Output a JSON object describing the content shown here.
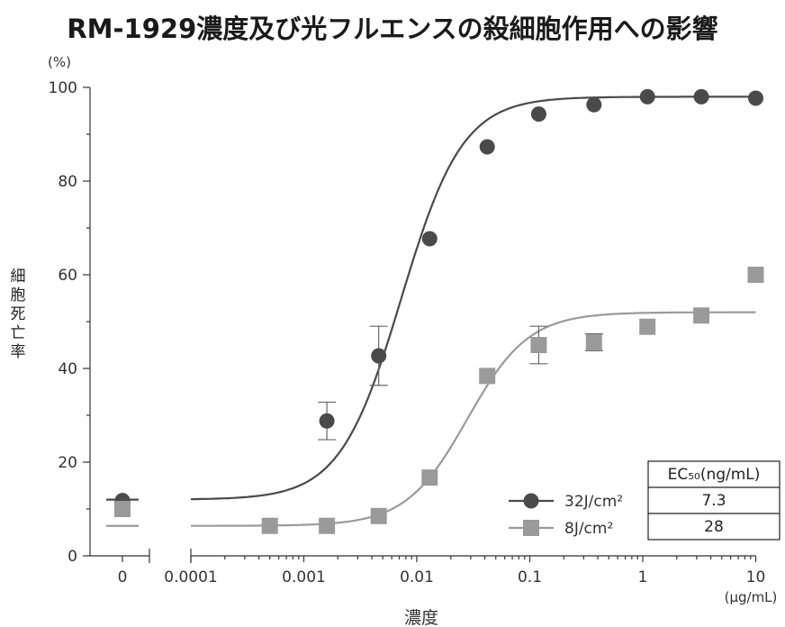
{
  "chart_data": {
    "type": "scatter",
    "title": "RM-1929濃度及び光フルエンスの殺細胞作用への影響",
    "ylabel": "細胞死亡率",
    "ylabel_unit": "(%)",
    "xlabel": "濃度",
    "xlabel_unit": "(μg/mL)",
    "x_scale": "log",
    "x_tick_labels": [
      "0",
      "0.0001",
      "0.001",
      "0.01",
      "0.1",
      "1",
      "10"
    ],
    "y_ticks": [
      0,
      20,
      40,
      60,
      80,
      100
    ],
    "ylim": [
      0,
      100
    ],
    "grid": false,
    "legend_position": "bottom-right",
    "series": [
      {
        "name": "32J/cm²",
        "marker": "circle",
        "color": "#4a4a4a",
        "zero_value": 11.8,
        "x": [
          0.0016,
          0.0046,
          0.013,
          0.042,
          0.12,
          0.37,
          1.1,
          3.3,
          10
        ],
        "y": [
          28.8,
          42.7,
          67.7,
          87.3,
          94.3,
          96.3,
          98.0,
          98.0,
          97.7
        ],
        "error": [
          4.0,
          6.3,
          0,
          0,
          0,
          0,
          0,
          0,
          0
        ],
        "fit": {
          "bottom": 12,
          "top": 98,
          "ec50": 0.0073,
          "hill": 1.6
        }
      },
      {
        "name": "8J/cm²",
        "marker": "square",
        "color": "#9a9a9a",
        "zero_value": 10.0,
        "x": [
          0.0005,
          0.0016,
          0.0046,
          0.013,
          0.042,
          0.12,
          0.37,
          1.1,
          3.3,
          10
        ],
        "y": [
          6.4,
          6.4,
          8.5,
          16.7,
          38.4,
          45.0,
          45.6,
          48.9,
          51.3,
          60.0
        ],
        "error": [
          0,
          0,
          0,
          0,
          0,
          4.0,
          1.8,
          0,
          0,
          0
        ],
        "fit": {
          "bottom": 6.4,
          "top": 52,
          "ec50": 0.028,
          "hill": 1.6
        }
      }
    ],
    "ec50_table": {
      "header": "EC₅₀(ng/mL)",
      "rows": [
        {
          "series": "32J/cm²",
          "value": "7.3"
        },
        {
          "series": "8J/cm²",
          "value": "28"
        }
      ]
    }
  }
}
